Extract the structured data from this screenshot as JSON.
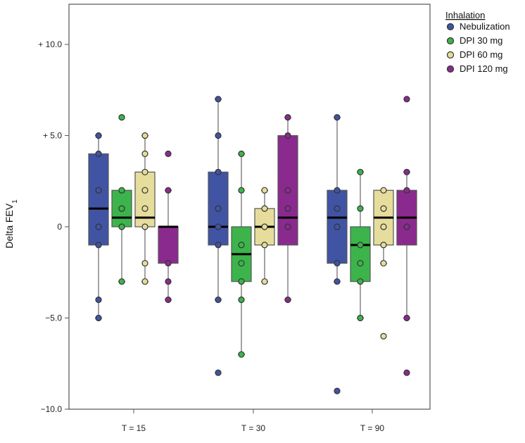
{
  "chart_data": {
    "type": "boxplot",
    "title": "",
    "ylabel": "Delta FEV",
    "ylabel_subscript": "1",
    "xlabel": "",
    "ylim": [
      -10.2,
      12.0
    ],
    "yticks": [
      {
        "value": 10,
        "label": "+ 10.0"
      },
      {
        "value": 5,
        "label": "+ 5.0"
      },
      {
        "value": 0,
        "label": "0"
      },
      {
        "value": -5,
        "label": "−5.0"
      },
      {
        "value": -10,
        "label": "−10.0"
      }
    ],
    "categories": [
      "T = 15",
      "T = 30",
      "T = 90"
    ],
    "legend": {
      "title": "Inhalation",
      "placement": "top-right, outside plot"
    },
    "series": [
      {
        "name": "Nebulization",
        "color": "#4054a3",
        "boxes": [
          {
            "q1": -1,
            "median": 1,
            "q3": 4,
            "whisker_low": -5,
            "whisker_high": 5,
            "points": [
              5,
              4,
              2,
              0,
              -1,
              -4,
              -5
            ]
          },
          {
            "q1": -1,
            "median": 0,
            "q3": 3,
            "whisker_low": -4,
            "whisker_high": 7,
            "points": [
              7,
              5,
              3,
              1,
              0,
              -1,
              -4,
              -8
            ]
          },
          {
            "q1": -2,
            "median": 0.5,
            "q3": 2,
            "whisker_low": -3,
            "whisker_high": 6,
            "points": [
              6,
              2,
              1,
              0,
              -2,
              -3,
              -9
            ]
          }
        ]
      },
      {
        "name": "DPI 30 mg",
        "color": "#3cb44b",
        "boxes": [
          {
            "q1": 0,
            "median": 0.5,
            "q3": 2,
            "whisker_low": -3,
            "whisker_high": 2,
            "points": [
              6,
              2,
              1,
              0,
              -3
            ]
          },
          {
            "q1": -3,
            "median": -1.5,
            "q3": 0,
            "whisker_low": -7,
            "whisker_high": 4,
            "points": [
              4,
              2,
              -1,
              -2,
              -3,
              -4,
              -7
            ]
          },
          {
            "q1": -3,
            "median": -1,
            "q3": 0,
            "whisker_low": -5,
            "whisker_high": 3,
            "points": [
              3,
              1,
              -1,
              -2,
              -3,
              -5
            ]
          }
        ]
      },
      {
        "name": "DPI 60 mg",
        "color": "#e6dd9c",
        "boxes": [
          {
            "q1": 0,
            "median": 0.5,
            "q3": 3,
            "whisker_low": -3,
            "whisker_high": 5,
            "points": [
              5,
              4,
              3,
              2,
              1,
              0,
              -2,
              -3
            ]
          },
          {
            "q1": -1,
            "median": 0,
            "q3": 1,
            "whisker_low": -3,
            "whisker_high": 2,
            "points": [
              2,
              1,
              0,
              -1,
              -3
            ]
          },
          {
            "q1": -1,
            "median": 0.5,
            "q3": 2,
            "whisker_low": -2,
            "whisker_high": 2,
            "points": [
              2,
              1,
              0,
              -1,
              -2,
              -6
            ]
          }
        ]
      },
      {
        "name": "DPI 120 mg",
        "color": "#8b2a8e",
        "boxes": [
          {
            "q1": -2,
            "median": 0,
            "q3": 0,
            "whisker_low": -4,
            "whisker_high": 2,
            "points": [
              4,
              2,
              -2,
              -3,
              -4
            ]
          },
          {
            "q1": -1,
            "median": 0.5,
            "q3": 5,
            "whisker_low": -4,
            "whisker_high": 6,
            "points": [
              6,
              5,
              2,
              1,
              0,
              -4
            ]
          },
          {
            "q1": -1,
            "median": 0.5,
            "q3": 2,
            "whisker_low": -5,
            "whisker_high": 3,
            "points": [
              7,
              3,
              2,
              0,
              -5,
              -8
            ]
          }
        ]
      }
    ]
  }
}
